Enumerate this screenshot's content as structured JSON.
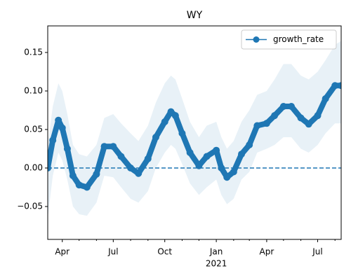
{
  "chart_data": {
    "type": "line",
    "title": "WY",
    "x": [
      "2020-03-06",
      "2020-03-15",
      "2020-03-25",
      "2020-04-01",
      "2020-04-10",
      "2020-04-20",
      "2020-05-01",
      "2020-05-15",
      "2020-06-01",
      "2020-06-15",
      "2020-07-01",
      "2020-07-15",
      "2020-08-01",
      "2020-08-15",
      "2020-09-01",
      "2020-09-15",
      "2020-10-01",
      "2020-10-12",
      "2020-10-20",
      "2020-11-01",
      "2020-11-15",
      "2020-12-01",
      "2020-12-15",
      "2021-01-01",
      "2021-01-10",
      "2021-01-20",
      "2021-02-01",
      "2021-02-15",
      "2021-03-01",
      "2021-03-15",
      "2021-04-01",
      "2021-04-15",
      "2021-05-01",
      "2021-05-15",
      "2021-06-01",
      "2021-06-15",
      "2021-07-01",
      "2021-07-15",
      "2021-08-01",
      "2021-08-12"
    ],
    "series": [
      {
        "name": "growth_rate",
        "color": "#1f77b4",
        "values": [
          0.0,
          0.036,
          0.062,
          0.052,
          0.025,
          -0.01,
          -0.022,
          -0.025,
          -0.008,
          0.028,
          0.028,
          0.015,
          0.0,
          -0.007,
          0.012,
          0.04,
          0.06,
          0.073,
          0.068,
          0.045,
          0.02,
          0.003,
          0.015,
          0.023,
          0.0,
          -0.012,
          -0.005,
          0.018,
          0.03,
          0.055,
          0.058,
          0.068,
          0.08,
          0.08,
          0.065,
          0.057,
          0.068,
          0.09,
          0.107,
          0.107
        ]
      }
    ],
    "band": {
      "color": "#1f77b4",
      "opacity": 0.1,
      "lower": [
        -0.065,
        -0.01,
        0.02,
        0.01,
        -0.015,
        -0.05,
        -0.06,
        -0.062,
        -0.045,
        -0.01,
        -0.012,
        -0.025,
        -0.04,
        -0.045,
        -0.03,
        0.0,
        0.02,
        0.03,
        0.025,
        0.005,
        -0.02,
        -0.035,
        -0.025,
        -0.015,
        -0.035,
        -0.047,
        -0.04,
        -0.015,
        -0.005,
        0.02,
        0.025,
        0.03,
        0.04,
        0.04,
        0.025,
        0.02,
        0.03,
        0.045,
        0.058,
        0.058
      ],
      "upper": [
        0.03,
        0.08,
        0.11,
        0.1,
        0.07,
        0.03,
        0.018,
        0.015,
        0.03,
        0.065,
        0.07,
        0.058,
        0.045,
        0.035,
        0.055,
        0.085,
        0.11,
        0.12,
        0.115,
        0.09,
        0.06,
        0.04,
        0.055,
        0.06,
        0.04,
        0.025,
        0.035,
        0.06,
        0.075,
        0.095,
        0.1,
        0.115,
        0.135,
        0.135,
        0.12,
        0.115,
        0.125,
        0.14,
        0.16,
        0.165
      ]
    },
    "hline": {
      "y": 0,
      "color": "#1f77b4",
      "style": "dashed"
    },
    "xlim": [
      "2020-03-06",
      "2021-08-12"
    ],
    "xticks": [
      {
        "value": "2020-04-01",
        "label": "Apr"
      },
      {
        "value": "2020-07-01",
        "label": "Jul"
      },
      {
        "value": "2020-10-01",
        "label": "Oct"
      },
      {
        "value": "2021-01-01",
        "label": "Jan"
      },
      {
        "value": "2021-04-01",
        "label": "Apr"
      },
      {
        "value": "2021-07-01",
        "label": "Jul"
      }
    ],
    "xyearticks": [
      {
        "value": "2021-01-01",
        "label": "2021"
      }
    ],
    "xminorticks": [
      "2020-05-01",
      "2020-06-01",
      "2020-08-01",
      "2020-09-01",
      "2020-11-01",
      "2020-12-01",
      "2021-02-01",
      "2021-03-01",
      "2021-05-01",
      "2021-06-01",
      "2021-08-01"
    ],
    "ylim": [
      -0.0927,
      0.1845
    ],
    "yticks": [
      {
        "value": -0.05,
        "label": "−0.05"
      },
      {
        "value": 0,
        "label": "0.00"
      },
      {
        "value": 0.05,
        "label": "0.05"
      },
      {
        "value": 0.1,
        "label": "0.10"
      },
      {
        "value": 0.15,
        "label": "0.15"
      }
    ],
    "legend": "upper right",
    "marker": "circle"
  }
}
